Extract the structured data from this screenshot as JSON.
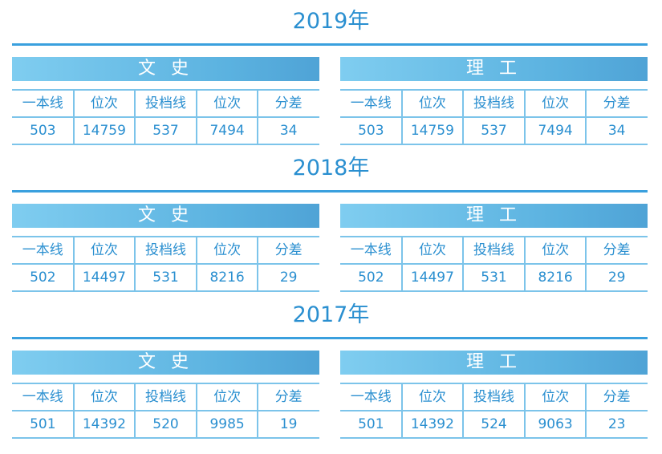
{
  "columns": [
    "一本线",
    "位次",
    "投档线",
    "位次",
    "分差"
  ],
  "sections": [
    {
      "year": "2019年",
      "tables": [
        {
          "name": "文 史",
          "values": [
            503,
            14759,
            537,
            7494,
            34
          ]
        },
        {
          "name": "理 工",
          "values": [
            503,
            14759,
            537,
            7494,
            34
          ]
        }
      ]
    },
    {
      "year": "2018年",
      "tables": [
        {
          "name": "文 史",
          "values": [
            502,
            14497,
            531,
            8216,
            29
          ]
        },
        {
          "name": "理 工",
          "values": [
            502,
            14497,
            531,
            8216,
            29
          ]
        }
      ]
    },
    {
      "year": "2017年",
      "tables": [
        {
          "name": "文 史",
          "values": [
            501,
            14392,
            520,
            9985,
            19
          ]
        },
        {
          "name": "理 工",
          "values": [
            501,
            14392,
            524,
            9063,
            23
          ]
        }
      ]
    }
  ]
}
